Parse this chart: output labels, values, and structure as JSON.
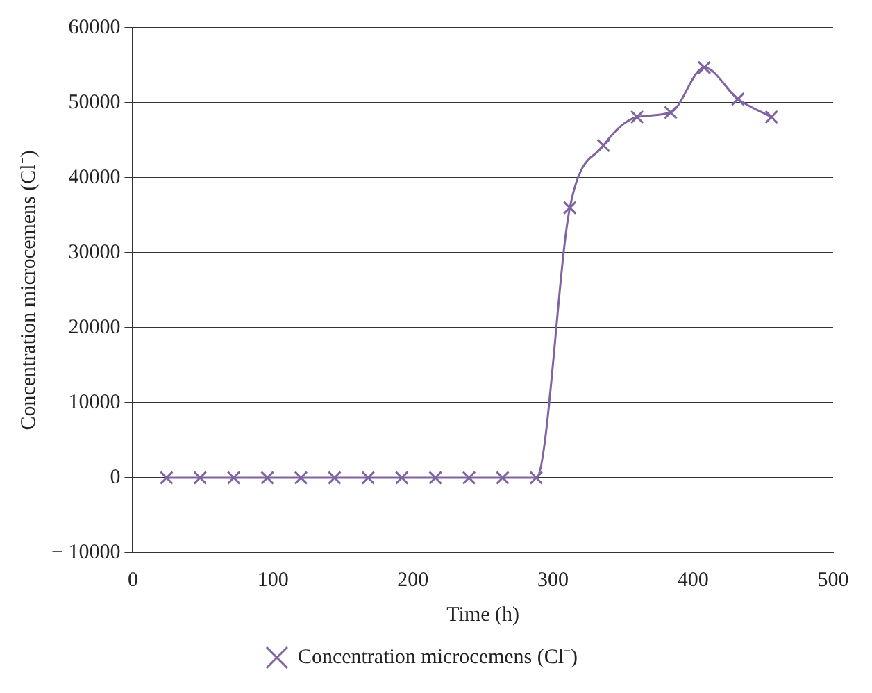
{
  "chart_data": {
    "type": "line",
    "xlabel": "Time (h)",
    "ylabel": "Concentration microcemens (Cl⁻)",
    "x": [
      24,
      48,
      72,
      96,
      120,
      144,
      168,
      192,
      216,
      240,
      264,
      288,
      312,
      336,
      360,
      384,
      408,
      432,
      456
    ],
    "series": [
      {
        "name": "Concentration microcemens (Cl⁻)",
        "color": "#8064a2",
        "values": [
          0,
          0,
          0,
          0,
          0,
          0,
          0,
          0,
          0,
          0,
          0,
          0,
          36000,
          44300,
          48100,
          48700,
          54700,
          50500,
          48100
        ]
      }
    ],
    "xlim": [
      0,
      500
    ],
    "xticks": [
      0,
      100,
      200,
      300,
      400,
      500
    ],
    "ylim": [
      -10000,
      60000
    ],
    "yticks": [
      -10000,
      0,
      10000,
      20000,
      30000,
      40000,
      50000,
      60000
    ],
    "grid": "y",
    "legend": "bottom",
    "marker": "cross",
    "line_style": "solid"
  }
}
